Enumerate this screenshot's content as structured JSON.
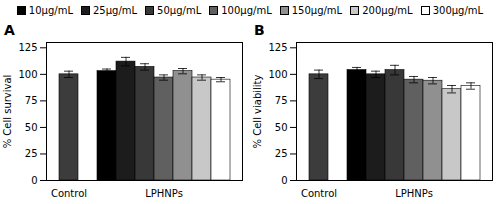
{
  "chart_data": [
    {
      "type": "bar",
      "title": "A",
      "ylabel": "% Cell survival",
      "legend": "top",
      "categories": [
        "Control",
        "LPHNPs"
      ],
      "ylim": [
        0,
        130
      ],
      "yticks": [
        0,
        25,
        50,
        75,
        100,
        125
      ],
      "series": [
        {
          "color": "#3c3c3c",
          "values": [
            100.0,
            null
          ],
          "errors": [
            3.0,
            null
          ]
        },
        {
          "name": "10μg/mL",
          "color": "#000000",
          "values": [
            null,
            103.0
          ],
          "errors": [
            null,
            2.0
          ]
        },
        {
          "name": "25μg/mL",
          "color": "#1c1c1c",
          "values": [
            null,
            112.0
          ],
          "errors": [
            null,
            4.0
          ]
        },
        {
          "name": "50μg/mL",
          "color": "#383838",
          "values": [
            null,
            107.0
          ],
          "errors": [
            null,
            3.0
          ]
        },
        {
          "name": "100μg/mL",
          "color": "#606060",
          "values": [
            null,
            97.0
          ],
          "errors": [
            null,
            2.5
          ]
        },
        {
          "name": "150μg/mL",
          "color": "#909090",
          "values": [
            null,
            103.0
          ],
          "errors": [
            null,
            2.5
          ]
        },
        {
          "name": "200μg/mL",
          "color": "#c8c8c8",
          "values": [
            null,
            97.0
          ],
          "errors": [
            null,
            2.5
          ]
        },
        {
          "name": "300μg/mL",
          "color": "#ffffff",
          "values": [
            null,
            95.0
          ],
          "errors": [
            null,
            2.0
          ]
        }
      ]
    },
    {
      "type": "bar",
      "title": "B",
      "ylabel": "% Cell viability",
      "legend": "top",
      "categories": [
        "Control",
        "LPHNPs"
      ],
      "ylim": [
        0,
        130
      ],
      "yticks": [
        0,
        25,
        50,
        75,
        100,
        125
      ],
      "series": [
        {
          "color": "#3c3c3c",
          "values": [
            100.0,
            null
          ],
          "errors": [
            4.0,
            null
          ]
        },
        {
          "name": "10μg/mL",
          "color": "#000000",
          "values": [
            null,
            104.0
          ],
          "errors": [
            null,
            2.5
          ]
        },
        {
          "name": "25μg/mL",
          "color": "#1c1c1c",
          "values": [
            null,
            100.0
          ],
          "errors": [
            null,
            3.0
          ]
        },
        {
          "name": "50μg/mL",
          "color": "#383838",
          "values": [
            null,
            104.0
          ],
          "errors": [
            null,
            4.5
          ]
        },
        {
          "name": "100μg/mL",
          "color": "#606060",
          "values": [
            null,
            95.0
          ],
          "errors": [
            null,
            3.0
          ]
        },
        {
          "name": "150μg/mL",
          "color": "#909090",
          "values": [
            null,
            94.0
          ],
          "errors": [
            null,
            3.0
          ]
        },
        {
          "name": "200μg/mL",
          "color": "#c8c8c8",
          "values": [
            null,
            86.0
          ],
          "errors": [
            null,
            3.5
          ]
        },
        {
          "name": "300μg/mL",
          "color": "#ffffff",
          "values": [
            null,
            89.0
          ],
          "errors": [
            null,
            3.0
          ]
        }
      ]
    }
  ]
}
